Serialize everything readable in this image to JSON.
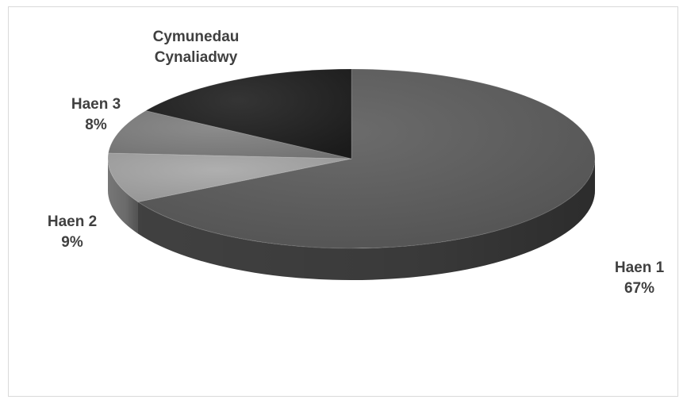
{
  "chart_data": {
    "type": "pie",
    "three_d": true,
    "title": "",
    "legend": "none",
    "slices": [
      {
        "name": "Haen 1",
        "value": 67,
        "label_lines": [
          "Haen 1",
          "67%"
        ],
        "color": "#5b5b5b"
      },
      {
        "name": "Haen 2",
        "value": 9,
        "label_lines": [
          "Haen 2",
          "9%"
        ],
        "color": "#a6a6a6"
      },
      {
        "name": "Haen 3",
        "value": 8,
        "label_lines": [
          "Haen 3",
          "8%"
        ],
        "color": "#7f7f7f"
      },
      {
        "name": "Cymunedau Cynaliadwy",
        "value": 16,
        "label_lines": [
          "Cymunedau",
          "Cynaliadwy"
        ],
        "color": "#1e1e1e"
      }
    ]
  }
}
